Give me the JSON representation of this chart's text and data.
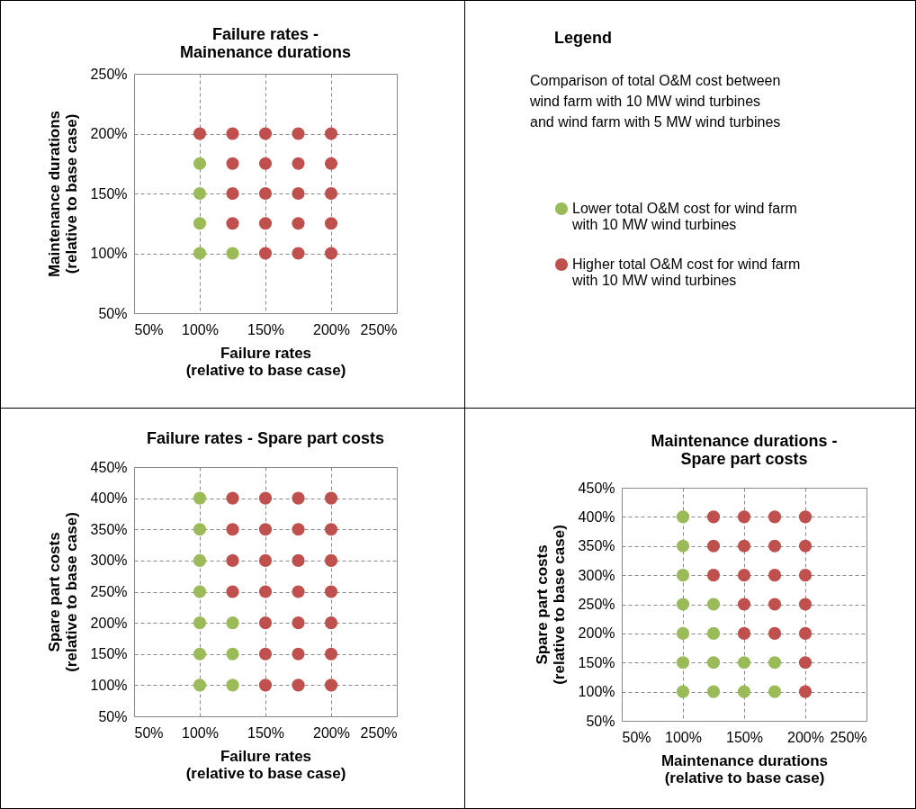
{
  "chart_data": [
    {
      "type": "scatter",
      "title": "Failure rates -\nMainenance durations",
      "xlabel": "Failure rates\n(relative to base case)",
      "ylabel": "Maintenance durations\n(relative to base case)",
      "legend_title": "Legend",
      "annotations": [
        "Comparison of total O&M cost between\nwind farm with 10 MW wind turbines\nand wind farm with 5 MW wind turbines"
      ],
      "legend": "right",
      "grid": true,
      "marker": "circle",
      "xlim": [
        50,
        250
      ],
      "xticks": [
        {
          "value": 50,
          "label": "50%"
        },
        {
          "value": 100,
          "label": "100%"
        },
        {
          "value": 150,
          "label": "150%"
        },
        {
          "value": 200,
          "label": "200%"
        },
        {
          "value": 250,
          "label": "250%"
        }
      ],
      "ylim": [
        50,
        250
      ],
      "yticks": [
        {
          "value": 50,
          "label": "50%"
        },
        {
          "value": 100,
          "label": "100%"
        },
        {
          "value": 150,
          "label": "150%"
        },
        {
          "value": 200,
          "label": "200%"
        },
        {
          "value": 250,
          "label": "250%"
        }
      ],
      "series": [
        {
          "name": "Lower total O&M cost for wind farm\nwith 10 MW wind turbines",
          "color": "#9bbb59",
          "x": [
            100,
            100,
            100,
            100,
            125
          ],
          "values": [
            100,
            125,
            150,
            175,
            100
          ]
        },
        {
          "name": "Higher total O&M cost for wind farm\nwith 10 MW wind turbines",
          "color": "#c0504d",
          "x": [
            100,
            125,
            125,
            125,
            125,
            150,
            150,
            150,
            150,
            150,
            175,
            175,
            175,
            175,
            175,
            200,
            200,
            200,
            200,
            200
          ],
          "values": [
            200,
            125,
            150,
            175,
            200,
            100,
            125,
            150,
            175,
            200,
            100,
            125,
            150,
            175,
            200,
            100,
            125,
            150,
            175,
            200
          ]
        }
      ]
    },
    {
      "type": "scatter",
      "title": "Failure rates - Spare part costs",
      "xlabel": "Failure rates\n(relative to base case)",
      "ylabel": "Spare part costs\n(relative to base case)",
      "grid": true,
      "marker": "circle",
      "xlim": [
        50,
        250
      ],
      "xticks": [
        {
          "value": 50,
          "label": "50%"
        },
        {
          "value": 100,
          "label": "100%"
        },
        {
          "value": 150,
          "label": "150%"
        },
        {
          "value": 200,
          "label": "200%"
        },
        {
          "value": 250,
          "label": "250%"
        }
      ],
      "ylim": [
        50,
        450
      ],
      "yticks": [
        {
          "value": 50,
          "label": "50%"
        },
        {
          "value": 100,
          "label": "100%"
        },
        {
          "value": 150,
          "label": "150%"
        },
        {
          "value": 200,
          "label": "200%"
        },
        {
          "value": 250,
          "label": "250%"
        },
        {
          "value": 300,
          "label": "300%"
        },
        {
          "value": 350,
          "label": "350%"
        },
        {
          "value": 400,
          "label": "400%"
        },
        {
          "value": 450,
          "label": "450%"
        }
      ],
      "series": [
        {
          "color": "#9bbb59",
          "x": [
            100,
            100,
            100,
            100,
            100,
            100,
            100,
            125,
            125,
            125
          ],
          "values": [
            100,
            150,
            200,
            250,
            300,
            350,
            400,
            100,
            150,
            200
          ]
        },
        {
          "color": "#c0504d",
          "x": [
            125,
            125,
            125,
            125,
            150,
            150,
            150,
            150,
            150,
            150,
            150,
            175,
            175,
            175,
            175,
            175,
            175,
            175,
            200,
            200,
            200,
            200,
            200,
            200,
            200
          ],
          "values": [
            250,
            300,
            350,
            400,
            100,
            150,
            200,
            250,
            300,
            350,
            400,
            100,
            150,
            200,
            250,
            300,
            350,
            400,
            100,
            150,
            200,
            250,
            300,
            350,
            400
          ]
        }
      ]
    },
    {
      "type": "scatter",
      "title": "Maintenance durations -\nSpare part costs",
      "xlabel": "Maintenance durations\n(relative to base case)",
      "ylabel": "Spare part costs\n(relative to base case)",
      "grid": true,
      "marker": "circle",
      "xlim": [
        50,
        250
      ],
      "xticks": [
        {
          "value": 50,
          "label": "50%"
        },
        {
          "value": 100,
          "label": "100%"
        },
        {
          "value": 150,
          "label": "150%"
        },
        {
          "value": 200,
          "label": "200%"
        },
        {
          "value": 250,
          "label": "250%"
        }
      ],
      "ylim": [
        50,
        450
      ],
      "yticks": [
        {
          "value": 50,
          "label": "50%"
        },
        {
          "value": 100,
          "label": "100%"
        },
        {
          "value": 150,
          "label": "150%"
        },
        {
          "value": 200,
          "label": "200%"
        },
        {
          "value": 250,
          "label": "250%"
        },
        {
          "value": 300,
          "label": "300%"
        },
        {
          "value": 350,
          "label": "350%"
        },
        {
          "value": 400,
          "label": "400%"
        },
        {
          "value": 450,
          "label": "450%"
        }
      ],
      "series": [
        {
          "color": "#9bbb59",
          "x": [
            100,
            100,
            100,
            100,
            100,
            100,
            100,
            125,
            125,
            125,
            125,
            150,
            150,
            175,
            175
          ],
          "values": [
            100,
            150,
            200,
            250,
            300,
            350,
            400,
            100,
            150,
            200,
            250,
            100,
            150,
            100,
            150
          ]
        },
        {
          "color": "#c0504d",
          "x": [
            125,
            125,
            125,
            150,
            150,
            150,
            150,
            150,
            175,
            175,
            175,
            175,
            175,
            200,
            200,
            200,
            200,
            200,
            200,
            200
          ],
          "values": [
            300,
            350,
            400,
            200,
            250,
            300,
            350,
            400,
            200,
            250,
            300,
            350,
            400,
            100,
            150,
            200,
            250,
            300,
            350,
            400
          ]
        }
      ]
    }
  ]
}
